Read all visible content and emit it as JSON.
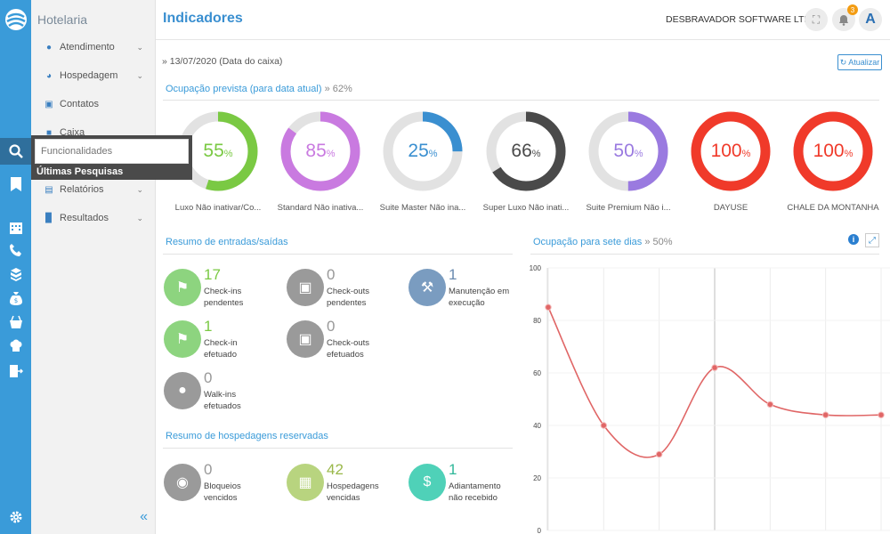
{
  "sidebar": {
    "title": "Hotelaria",
    "items": [
      {
        "label": "Atendimento",
        "chevron": true,
        "icon": "person-icon"
      },
      {
        "label": "Hospedagem",
        "chevron": true,
        "icon": "hotel-icon"
      },
      {
        "label": "Contatos",
        "chevron": false,
        "icon": "contacts-icon"
      },
      {
        "label": "Caixa",
        "chevron": false,
        "icon": "cash-register-icon"
      },
      {
        "label": "Relatórios",
        "chevron": true,
        "icon": "report-icon"
      },
      {
        "label": "Resultados",
        "chevron": true,
        "icon": "bar-chart-icon"
      }
    ]
  },
  "search": {
    "placeholder": "Funcionalidades",
    "recent_label": "Últimas Pesquisas"
  },
  "header": {
    "title": "Indicadores",
    "company": "DESBRAVADOR SOFTWARE LTDA",
    "notification_count": "3",
    "avatar_letter": "A"
  },
  "date_line": "» 13/07/2020 (Data do caixa)",
  "refresh_label": "Atualizar",
  "occupancy": {
    "title": "Ocupação prevista (para data atual)",
    "pct": "» 62%",
    "donuts": [
      {
        "value": 55,
        "label": "Luxo Não inativar/Co...",
        "color": "#7ac943"
      },
      {
        "value": 85,
        "label": "Standard Não inativa...",
        "color": "#c97ae0"
      },
      {
        "value": 25,
        "label": "Suite Master Não ina...",
        "color": "#3a8fd0"
      },
      {
        "value": 66,
        "label": "Super Luxo Não inati...",
        "color": "#4a4a4a"
      },
      {
        "value": 50,
        "label": "Suite Premium Não i...",
        "color": "#9a7ae0"
      },
      {
        "value": 100,
        "label": "DAYUSE",
        "color": "#f03a2a"
      },
      {
        "value": 100,
        "label": "CHALE DA MONTANHA",
        "color": "#f03a2a"
      }
    ]
  },
  "flows": {
    "title": "Resumo de entradas/saídas",
    "items": [
      {
        "num": "17",
        "line1": "Check-ins",
        "line2": "pendentes",
        "color": "#8dd47f",
        "num_color": "#7ac943",
        "icon": "bell-icon"
      },
      {
        "num": "0",
        "line1": "Check-outs",
        "line2": "pendentes",
        "color": "#9a9a9a",
        "num_color": "#999999",
        "icon": "luggage-icon"
      },
      {
        "num": "1",
        "line1": "Manutenção em",
        "line2": "execução",
        "color": "#7a9cc0",
        "num_color": "#6a8ab0",
        "icon": "wrench-icon"
      },
      {
        "num": "1",
        "line1": "Check-in",
        "line2": "efetuado",
        "color": "#8dd47f",
        "num_color": "#7ac943",
        "icon": "bell-icon"
      },
      {
        "num": "0",
        "line1": "Check-outs",
        "line2": "efetuados",
        "color": "#9a9a9a",
        "num_color": "#999999",
        "icon": "luggage-icon"
      },
      {
        "num": "0",
        "line1": "Walk-ins",
        "line2": "efetuados",
        "color": "#9a9a9a",
        "num_color": "#999999",
        "icon": "footprints-icon"
      }
    ]
  },
  "reservations": {
    "title": "Resumo de hospedagens reservadas",
    "items": [
      {
        "num": "0",
        "line1": "Bloqueios",
        "line2": "vencidos",
        "color": "#9a9a9a",
        "num_color": "#999999",
        "icon": "lock-icon"
      },
      {
        "num": "42",
        "line1": "Hospedagens",
        "line2": "vencidas",
        "color": "#b8d47f",
        "num_color": "#9ab84a",
        "icon": "calendar-icon"
      },
      {
        "num": "1",
        "line1": "Adiantamento",
        "line2": "não recebido",
        "color": "#4fd1b8",
        "num_color": "#30b89a",
        "icon": "dollar-icon"
      }
    ]
  },
  "week": {
    "title": "Ocupação para sete dias",
    "pct": "» 50%"
  },
  "chart_data": {
    "type": "line",
    "x": [
      1,
      2,
      3,
      4,
      5,
      6,
      7
    ],
    "series": [
      {
        "values": [
          85,
          40,
          29,
          62,
          48,
          44,
          44
        ],
        "color": "#e06666"
      }
    ],
    "ylim": [
      0,
      100
    ],
    "yticks": [
      "0",
      "20",
      "40",
      "60",
      "80",
      "100"
    ],
    "grid": true
  }
}
